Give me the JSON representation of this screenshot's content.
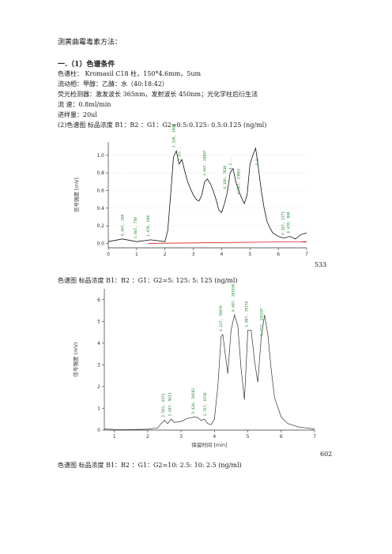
{
  "doc": {
    "title": "测黄曲霉毒素方法：",
    "section": "一.（1）色谱条件",
    "cond": {
      "column": "色谱柱：   Kromasil C18 柱，150*4.6mm，5um",
      "mobile": "流动相：甲醇：乙腈：水（40:18:42）",
      "detector": "荧光检测器：激发波长 365nm，发射波长 450nm；光化学柱后衍生法",
      "flow": "流   速：0.8ml/min",
      "inj": "进样量：20ul"
    },
    "fig1_caption": "(2)色谱图       标品浓度  B1：B2 ：G1：G2=0.5:0.125: 0.5:0.125 (ng/ml)",
    "fig1_number": "533",
    "fig2_caption": "色谱图       标品浓度  B1：B2 ：G1：G2=5: 125: 5: 125 (ng/ml)",
    "fig2_number": "602",
    "fig3_caption": "色谱图       标品浓度  B1：B2 ：G1：G2=10: 2.5: 10: 2.5    (ng/ml)"
  },
  "chart_data": [
    {
      "type": "line",
      "ylabel": "信号强度 [mV]",
      "xlim": [
        0,
        7
      ],
      "ylim": [
        -0.05,
        1.15
      ],
      "x_ticks": [
        "0",
        "1",
        "2",
        "3",
        "4",
        "5",
        "6",
        "7"
      ],
      "y_ticks": [
        "0.0",
        "0.2",
        "0.4",
        "0.6",
        "0.8",
        "1.0"
      ],
      "peak_labels": [
        {
          "x": 0.55,
          "text": "0.607, 298"
        },
        {
          "x": 1.0,
          "text": "1.047, 750"
        },
        {
          "x": 1.45,
          "text": "1.470, 608"
        },
        {
          "x": 2.35,
          "text": "2.320, 1998"
        },
        {
          "x": 2.55,
          "text": "2.53..."
        },
        {
          "x": 3.45,
          "text": "3.447, 28087"
        },
        {
          "x": 4.15,
          "text": "4.160, 7010"
        },
        {
          "x": 4.35,
          "text": "4.3..."
        },
        {
          "x": 4.65,
          "text": "4.667, 23065"
        },
        {
          "x": 5.3,
          "text": "5.3..."
        },
        {
          "x": 6.2,
          "text": "6.167, 2271"
        },
        {
          "x": 6.4,
          "text": "6.470, 860"
        }
      ],
      "series": [
        {
          "x": [
            0,
            0.5,
            1,
            1.5,
            2,
            2.1,
            2.2,
            2.3,
            2.4,
            2.5,
            2.6,
            2.7,
            2.8,
            2.9,
            3.0,
            3.1,
            3.2,
            3.3,
            3.4,
            3.5,
            3.6,
            3.7,
            3.8,
            3.9,
            4.0,
            4.1,
            4.2,
            4.3,
            4.4,
            4.5,
            4.6,
            4.7,
            4.8,
            4.9,
            5.0,
            5.1,
            5.2,
            5.3,
            5.4,
            5.5,
            5.6,
            5.7,
            5.8,
            5.9,
            6.0,
            6.2,
            6.4,
            6.6,
            6.8,
            7.0
          ],
          "y": [
            0.02,
            0.05,
            0.02,
            0.04,
            0.02,
            0.15,
            0.55,
            0.98,
            1.05,
            0.9,
            0.95,
            0.82,
            0.7,
            0.62,
            0.55,
            0.5,
            0.48,
            0.55,
            0.7,
            0.73,
            0.68,
            0.6,
            0.5,
            0.38,
            0.35,
            0.45,
            0.58,
            0.8,
            0.85,
            0.7,
            0.6,
            0.52,
            0.45,
            0.55,
            0.9,
            1.0,
            1.08,
            0.85,
            0.6,
            0.4,
            0.25,
            0.18,
            0.12,
            0.1,
            0.08,
            0.06,
            0.08,
            0.05,
            0.1,
            0.12
          ]
        }
      ]
    },
    {
      "type": "line",
      "xlabel": "保留时间 [min]",
      "ylabel": "信号强度 (mV)",
      "xlim": [
        0.7,
        7
      ],
      "ylim": [
        0,
        6.5
      ],
      "x_ticks": [
        "1",
        "2",
        "3",
        "4",
        "5",
        "6",
        "7"
      ],
      "y_ticks": [
        "0",
        "1",
        "2",
        "3",
        "4",
        "5",
        "6"
      ],
      "peak_labels": [
        {
          "x": 2.5,
          "text": "2.503, 4374"
        },
        {
          "x": 2.7,
          "text": "2.687, 9613"
        },
        {
          "x": 3.4,
          "text": "3.420, 20582"
        },
        {
          "x": 3.75,
          "text": "3.767, 6550"
        },
        {
          "x": 4.23,
          "text": "4.227, 70979"
        },
        {
          "x": 4.6,
          "text": "4.607, 201830"
        },
        {
          "x": 5.0,
          "text": "5.007, 70178"
        },
        {
          "x": 5.45,
          "text": "5.427, 243297"
        }
      ],
      "series": [
        {
          "x": [
            0.7,
            1.0,
            1.5,
            2.0,
            2.3,
            2.4,
            2.5,
            2.6,
            2.7,
            2.8,
            3.0,
            3.2,
            3.4,
            3.5,
            3.6,
            3.7,
            3.8,
            3.9,
            4.0,
            4.1,
            4.2,
            4.25,
            4.3,
            4.4,
            4.5,
            4.6,
            4.7,
            4.8,
            4.9,
            5.0,
            5.1,
            5.2,
            5.3,
            5.4,
            5.5,
            5.6,
            5.7,
            5.8,
            6.0,
            6.2,
            6.5,
            7.0
          ],
          "y": [
            0.05,
            0.03,
            0.02,
            0.04,
            0.1,
            0.3,
            0.45,
            0.3,
            0.5,
            0.35,
            0.4,
            0.55,
            0.6,
            0.58,
            0.45,
            0.5,
            0.3,
            0.25,
            0.5,
            2.0,
            4.3,
            4.4,
            3.8,
            2.6,
            4.6,
            5.3,
            4.8,
            2.8,
            1.4,
            4.6,
            4.6,
            3.2,
            2.2,
            4.2,
            5.3,
            4.4,
            2.8,
            1.5,
            0.6,
            0.3,
            0.15,
            0.05
          ]
        }
      ]
    }
  ]
}
